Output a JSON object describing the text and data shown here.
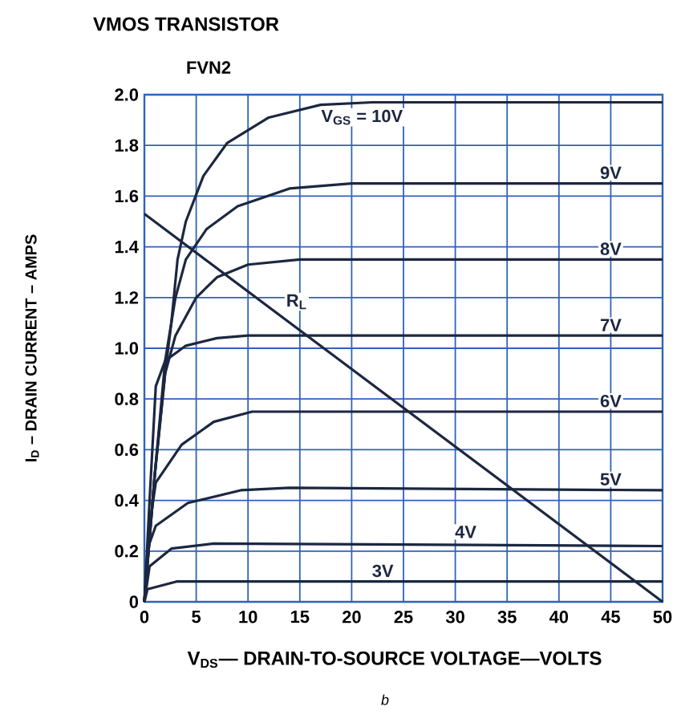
{
  "chart_data": {
    "type": "line",
    "title": "VMOS TRANSISTOR",
    "subtitle": "FVN2",
    "xlabel": "V$_{DS}$— DRAIN-TO-SOURCE VOLTAGE—VOLTS",
    "ylabel": "I$_{D}$ – DRAIN CURRENT – AMPS",
    "annotations": [
      "b"
    ],
    "xlim": [
      0,
      50
    ],
    "ylim": [
      0,
      2
    ],
    "xticks": [
      0,
      5,
      10,
      15,
      20,
      25,
      30,
      35,
      40,
      45,
      50
    ],
    "yticks": [
      0,
      0.2,
      0.4,
      0.6,
      0.8,
      {
        "value": 1,
        "label": "1.0"
      },
      1.2,
      1.4,
      1.6,
      1.8,
      {
        "value": 2,
        "label": "2.0"
      }
    ],
    "grid": true,
    "line_style": "solid",
    "series": [
      {
        "name": "V$_{GS}$ = 10V",
        "color": "#1c2740",
        "x": [
          0,
          1,
          2,
          2.6,
          3.2,
          4,
          5.7,
          8,
          12,
          17,
          22,
          50
        ],
        "values": [
          0,
          0.5,
          0.9,
          1.1,
          1.35,
          1.5,
          1.68,
          1.81,
          1.91,
          1.96,
          1.97,
          1.97
        ]
      },
      {
        "name": "9V",
        "color": "#1c2740",
        "x": [
          0,
          1,
          2,
          3,
          4,
          6,
          9,
          14,
          20,
          50
        ],
        "values": [
          0,
          0.5,
          0.95,
          1.2,
          1.35,
          1.47,
          1.56,
          1.63,
          1.65,
          1.65
        ]
      },
      {
        "name": "8V",
        "color": "#1c2740",
        "x": [
          0,
          1,
          2,
          3,
          5,
          7,
          10,
          15,
          50
        ],
        "values": [
          0,
          0.5,
          0.9,
          1.05,
          1.2,
          1.28,
          1.33,
          1.35,
          1.35
        ]
      },
      {
        "name": "7V",
        "color": "#1c2740",
        "x": [
          0,
          0.5,
          1.1,
          2,
          4,
          7,
          10,
          50
        ],
        "values": [
          0,
          0.4,
          0.85,
          0.95,
          1.01,
          1.04,
          1.05,
          1.05
        ]
      },
      {
        "name": "6V",
        "color": "#1c2740",
        "x": [
          0,
          0.5,
          1.1,
          3.6,
          6.7,
          10.4,
          50
        ],
        "values": [
          0,
          0.3,
          0.47,
          0.62,
          0.71,
          0.75,
          0.75
        ]
      },
      {
        "name": "5V",
        "color": "#1c2740",
        "x": [
          0,
          0.4,
          1.1,
          4.2,
          9.3,
          14,
          50
        ],
        "values": [
          0,
          0.22,
          0.3,
          0.39,
          0.44,
          0.45,
          0.44
        ]
      },
      {
        "name": "4V",
        "color": "#1c2740",
        "x": [
          0,
          0.5,
          2.6,
          6.7,
          50
        ],
        "values": [
          0,
          0.14,
          0.21,
          0.23,
          0.22
        ]
      },
      {
        "name": "3V",
        "color": "#1c2740",
        "x": [
          0,
          0.3,
          3.1,
          50
        ],
        "values": [
          0,
          0.05,
          0.08,
          0.08
        ]
      },
      {
        "name": "R$_{L}$",
        "color": "#1c2740",
        "x": [
          0,
          50
        ],
        "values": [
          1.53,
          0
        ]
      }
    ]
  }
}
